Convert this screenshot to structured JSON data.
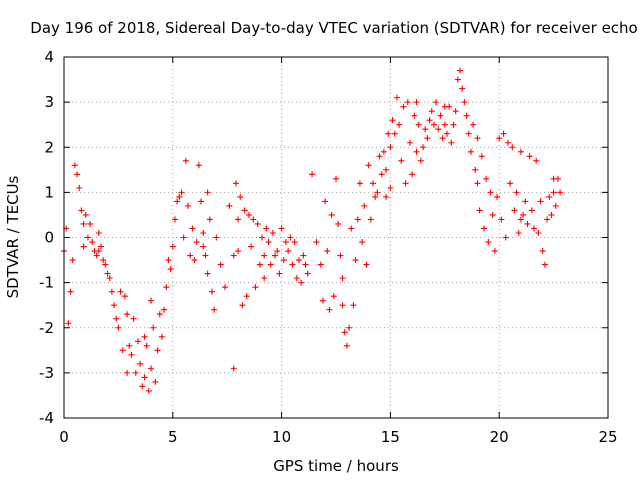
{
  "chart_data": {
    "type": "scatter",
    "title": "Day 196 of 2018, Sidereal Day-to-day VTEC variation (SDTVAR) for receiver echo",
    "xlabel": "GPS time / hours",
    "ylabel": "SDTVAR / TECUs",
    "xlim": [
      0,
      25
    ],
    "ylim": [
      -4,
      4
    ],
    "xticks": [
      "0",
      "5",
      "10",
      "15",
      "20",
      "25"
    ],
    "yticks": [
      "-4",
      "-3",
      "-2",
      "-1",
      "0",
      "1",
      "2",
      "3",
      "4"
    ],
    "grid": true,
    "marker": "+",
    "series_color": "#ff0000",
    "series": [
      {
        "points": [
          [
            0.0,
            -0.3
          ],
          [
            0.1,
            0.2
          ],
          [
            0.2,
            -1.9
          ],
          [
            0.3,
            -1.2
          ],
          [
            0.4,
            -0.5
          ],
          [
            0.5,
            1.6
          ],
          [
            0.6,
            1.4
          ],
          [
            0.7,
            1.1
          ],
          [
            0.8,
            0.6
          ],
          [
            0.9,
            0.3
          ],
          [
            1.0,
            0.5
          ],
          [
            1.1,
            0.0
          ],
          [
            1.2,
            0.3
          ],
          [
            1.3,
            -0.1
          ],
          [
            1.4,
            -0.3
          ],
          [
            1.5,
            -0.4
          ],
          [
            1.6,
            -0.3
          ],
          [
            1.7,
            -0.2
          ],
          [
            1.8,
            -0.5
          ],
          [
            1.9,
            -0.6
          ],
          [
            2.0,
            -0.8
          ],
          [
            2.1,
            -0.9
          ],
          [
            2.2,
            -1.2
          ],
          [
            2.3,
            -1.5
          ],
          [
            2.4,
            -1.8
          ],
          [
            2.5,
            -2.0
          ],
          [
            2.6,
            -1.2
          ],
          [
            2.7,
            -2.5
          ],
          [
            2.8,
            -1.3
          ],
          [
            2.9,
            -3.0
          ],
          [
            3.0,
            -2.4
          ],
          [
            3.1,
            -2.6
          ],
          [
            3.2,
            -1.8
          ],
          [
            3.3,
            -3.0
          ],
          [
            3.4,
            -2.3
          ],
          [
            3.5,
            -2.8
          ],
          [
            3.6,
            -3.3
          ],
          [
            3.7,
            -2.2
          ],
          [
            3.8,
            -2.4
          ],
          [
            3.9,
            -3.4
          ],
          [
            4.0,
            -2.9
          ],
          [
            4.1,
            -2.0
          ],
          [
            4.2,
            -3.2
          ],
          [
            4.3,
            -2.5
          ],
          [
            4.4,
            -1.7
          ],
          [
            4.5,
            -2.2
          ],
          [
            4.6,
            -1.6
          ],
          [
            4.7,
            -1.1
          ],
          [
            4.8,
            -0.5
          ],
          [
            4.9,
            -0.7
          ],
          [
            5.0,
            -0.2
          ],
          [
            5.1,
            0.4
          ],
          [
            5.2,
            0.8
          ],
          [
            5.3,
            0.9
          ],
          [
            5.4,
            1.0
          ],
          [
            5.5,
            0.0
          ],
          [
            5.6,
            1.7
          ],
          [
            5.7,
            0.7
          ],
          [
            5.8,
            -0.4
          ],
          [
            5.9,
            0.2
          ],
          [
            6.0,
            -0.5
          ],
          [
            6.1,
            -0.1
          ],
          [
            6.2,
            1.6
          ],
          [
            6.3,
            0.8
          ],
          [
            6.4,
            0.1
          ],
          [
            6.5,
            -0.4
          ],
          [
            6.6,
            -0.8
          ],
          [
            6.7,
            0.4
          ],
          [
            6.8,
            -1.2
          ],
          [
            6.9,
            -1.6
          ],
          [
            7.0,
            0.0
          ],
          [
            7.2,
            -0.6
          ],
          [
            7.4,
            -1.1
          ],
          [
            7.6,
            0.7
          ],
          [
            7.8,
            -0.4
          ],
          [
            7.9,
            1.2
          ],
          [
            8.0,
            -0.3
          ],
          [
            8.1,
            0.9
          ],
          [
            8.2,
            -1.5
          ],
          [
            8.3,
            0.6
          ],
          [
            8.4,
            -1.3
          ],
          [
            8.5,
            0.5
          ],
          [
            8.6,
            -0.2
          ],
          [
            8.7,
            0.4
          ],
          [
            8.8,
            -1.1
          ],
          [
            8.9,
            0.3
          ],
          [
            9.0,
            -0.6
          ],
          [
            9.1,
            0.0
          ],
          [
            9.2,
            -0.9
          ],
          [
            9.3,
            0.2
          ],
          [
            9.4,
            -0.1
          ],
          [
            9.5,
            -0.6
          ],
          [
            9.6,
            0.1
          ],
          [
            9.7,
            -0.4
          ],
          [
            9.8,
            -0.3
          ],
          [
            9.9,
            -0.8
          ],
          [
            10.0,
            0.2
          ],
          [
            10.1,
            -0.5
          ],
          [
            10.2,
            -0.1
          ],
          [
            10.3,
            -0.3
          ],
          [
            10.4,
            0.0
          ],
          [
            10.5,
            -0.6
          ],
          [
            10.6,
            -0.1
          ],
          [
            10.7,
            -0.9
          ],
          [
            10.8,
            -0.5
          ],
          [
            10.9,
            -1.0
          ],
          [
            11.0,
            -0.4
          ],
          [
            11.1,
            -0.6
          ],
          [
            11.2,
            -0.8
          ],
          [
            11.4,
            1.4
          ],
          [
            11.6,
            -0.1
          ],
          [
            11.8,
            -0.6
          ],
          [
            11.9,
            -1.4
          ],
          [
            12.0,
            0.8
          ],
          [
            12.1,
            -0.3
          ],
          [
            12.2,
            -1.6
          ],
          [
            12.3,
            0.5
          ],
          [
            12.4,
            -1.3
          ],
          [
            12.5,
            1.3
          ],
          [
            12.6,
            0.3
          ],
          [
            12.7,
            -0.4
          ],
          [
            12.8,
            -1.5
          ],
          [
            12.9,
            -2.1
          ],
          [
            13.0,
            -2.4
          ],
          [
            13.1,
            -2.0
          ],
          [
            13.2,
            0.2
          ],
          [
            13.3,
            -1.5
          ],
          [
            13.4,
            -0.5
          ],
          [
            13.5,
            0.4
          ],
          [
            13.6,
            1.2
          ],
          [
            13.7,
            -0.1
          ],
          [
            13.8,
            0.7
          ],
          [
            13.9,
            -0.6
          ],
          [
            14.0,
            1.6
          ],
          [
            14.1,
            0.4
          ],
          [
            14.2,
            1.2
          ],
          [
            14.3,
            0.9
          ],
          [
            14.4,
            1.0
          ],
          [
            14.5,
            1.8
          ],
          [
            14.6,
            1.4
          ],
          [
            14.7,
            1.9
          ],
          [
            14.8,
            1.5
          ],
          [
            14.9,
            2.3
          ],
          [
            15.0,
            2.0
          ],
          [
            15.1,
            2.6
          ],
          [
            15.2,
            2.3
          ],
          [
            15.3,
            3.1
          ],
          [
            15.4,
            2.5
          ],
          [
            15.5,
            1.7
          ],
          [
            15.6,
            2.9
          ],
          [
            15.7,
            1.2
          ],
          [
            15.8,
            3.0
          ],
          [
            15.9,
            2.1
          ],
          [
            16.0,
            1.4
          ],
          [
            16.1,
            2.7
          ],
          [
            16.2,
            1.9
          ],
          [
            16.3,
            2.5
          ],
          [
            16.4,
            1.7
          ],
          [
            16.5,
            2.0
          ],
          [
            16.6,
            2.4
          ],
          [
            16.7,
            2.2
          ],
          [
            16.8,
            2.6
          ],
          [
            16.9,
            2.8
          ],
          [
            17.0,
            2.5
          ],
          [
            17.1,
            3.0
          ],
          [
            17.2,
            2.4
          ],
          [
            17.3,
            2.7
          ],
          [
            17.4,
            2.2
          ],
          [
            17.5,
            2.5
          ],
          [
            17.6,
            2.3
          ],
          [
            17.7,
            2.9
          ],
          [
            17.8,
            2.1
          ],
          [
            17.9,
            2.5
          ],
          [
            18.0,
            2.8
          ],
          [
            18.1,
            3.5
          ],
          [
            18.2,
            3.7
          ],
          [
            18.3,
            3.3
          ],
          [
            18.4,
            3.0
          ],
          [
            18.5,
            2.7
          ],
          [
            18.6,
            2.3
          ],
          [
            18.7,
            1.9
          ],
          [
            18.8,
            2.5
          ],
          [
            18.9,
            1.5
          ],
          [
            19.0,
            1.2
          ],
          [
            19.1,
            0.6
          ],
          [
            19.2,
            1.8
          ],
          [
            19.3,
            0.2
          ],
          [
            19.4,
            1.3
          ],
          [
            19.5,
            -0.1
          ],
          [
            19.6,
            1.0
          ],
          [
            19.7,
            0.5
          ],
          [
            19.8,
            -0.3
          ],
          [
            19.9,
            0.9
          ],
          [
            20.0,
            2.2
          ],
          [
            20.1,
            0.4
          ],
          [
            20.2,
            2.3
          ],
          [
            20.3,
            0.0
          ],
          [
            20.4,
            2.1
          ],
          [
            20.5,
            1.2
          ],
          [
            20.6,
            2.0
          ],
          [
            20.7,
            0.6
          ],
          [
            20.8,
            1.0
          ],
          [
            20.9,
            0.1
          ],
          [
            21.0,
            1.9
          ],
          [
            21.1,
            0.5
          ],
          [
            21.2,
            0.8
          ],
          [
            21.3,
            0.3
          ],
          [
            21.4,
            1.8
          ],
          [
            21.5,
            0.6
          ],
          [
            21.6,
            0.2
          ],
          [
            21.7,
            1.7
          ],
          [
            21.8,
            0.1
          ],
          [
            21.9,
            0.8
          ],
          [
            22.0,
            -0.3
          ],
          [
            22.1,
            -0.6
          ],
          [
            22.2,
            0.4
          ],
          [
            22.3,
            0.9
          ],
          [
            22.4,
            0.5
          ],
          [
            22.5,
            1.0
          ],
          [
            22.6,
            0.7
          ],
          [
            22.7,
            1.3
          ],
          [
            22.8,
            1.0
          ],
          [
            7.8,
            -2.9
          ],
          [
            4.0,
            -1.4
          ],
          [
            2.9,
            -1.7
          ],
          [
            3.7,
            -3.1
          ],
          [
            6.6,
            1.0
          ],
          [
            8.0,
            0.4
          ],
          [
            12.8,
            -0.9
          ],
          [
            15.0,
            1.1
          ],
          [
            16.2,
            3.0
          ],
          [
            19.0,
            2.2
          ],
          [
            21.0,
            0.4
          ],
          [
            22.5,
            1.3
          ],
          [
            0.9,
            -0.2
          ],
          [
            1.6,
            0.1
          ],
          [
            6.4,
            -0.2
          ],
          [
            9.2,
            -0.4
          ],
          [
            14.8,
            0.9
          ],
          [
            17.5,
            2.9
          ]
        ]
      }
    ]
  }
}
